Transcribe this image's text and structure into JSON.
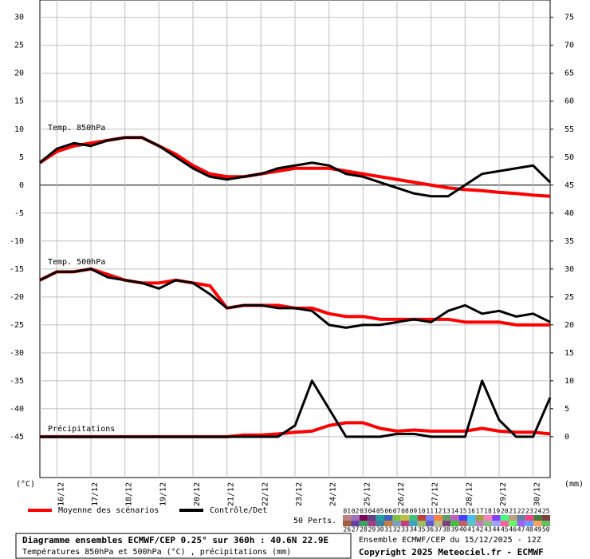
{
  "chart_data": {
    "type": "line",
    "title": "Diagramme ensembles ECMWF/CEP 0.25° sur 360h : 40.6N 22.9E",
    "subtitle": "Températures 850hPa et 500hPa (°C) , précipitations (mm)",
    "run_info": "Ensemble ECMWF/CEP du 15/12/2025 - 12Z",
    "copyright": "Copyright 2025 Meteociel.fr - ECMWF",
    "ylabel": "(°C)",
    "y2label": "(mm)",
    "annotations": [
      "Temp. 850hPa",
      "Temp. 500hPa",
      "Précipitations"
    ],
    "grid": true,
    "x": [
      0,
      12,
      24,
      36,
      48,
      60,
      72,
      84,
      96,
      108,
      120,
      132,
      144,
      156,
      168,
      180,
      192,
      204,
      216,
      228,
      240,
      252,
      264,
      276,
      288,
      300,
      312,
      324,
      336,
      348,
      360
    ],
    "xlim": [
      0,
      360
    ],
    "xticks": [
      {
        "value": 12,
        "label": "16/12"
      },
      {
        "value": 36,
        "label": "17/12"
      },
      {
        "value": 60,
        "label": "18/12"
      },
      {
        "value": 84,
        "label": "19/12"
      },
      {
        "value": 108,
        "label": "20/12"
      },
      {
        "value": 132,
        "label": "21/12"
      },
      {
        "value": 156,
        "label": "22/12"
      },
      {
        "value": 180,
        "label": "23/12"
      },
      {
        "value": 204,
        "label": "24/12"
      },
      {
        "value": 228,
        "label": "25/12"
      },
      {
        "value": 252,
        "label": "26/12"
      },
      {
        "value": 276,
        "label": "27/12"
      },
      {
        "value": 300,
        "label": "28/12"
      },
      {
        "value": 324,
        "label": "29/12"
      },
      {
        "value": 348,
        "label": "30/12"
      }
    ],
    "ylim": [
      -52.3,
      33.1
    ],
    "yticks": [
      30,
      25,
      20,
      15,
      10,
      5,
      0,
      -5,
      -10,
      -15,
      -20,
      -25,
      -30,
      -35,
      -40,
      -45
    ],
    "y2lim": [
      -7.3,
      78.1
    ],
    "y2ticks": [
      75,
      70,
      65,
      60,
      55,
      50,
      45,
      40,
      35,
      30,
      25,
      20,
      15,
      10,
      5,
      0
    ],
    "series": [
      {
        "name": "Moyenne des scénarios",
        "color": "#ff0000",
        "t850": [
          4,
          6,
          7,
          7.5,
          8,
          8.5,
          8.5,
          7,
          5.5,
          3.5,
          2,
          1.5,
          1.5,
          2,
          2.5,
          3,
          3,
          3,
          2.5,
          2,
          1.5,
          1,
          0.5,
          0,
          -0.5,
          -0.8,
          -1,
          -1.3,
          -1.5,
          -1.8,
          -2
        ],
        "t500": [
          -17,
          -15.5,
          -15.5,
          -15,
          -16,
          -17,
          -17.5,
          -17.5,
          -17,
          -17.5,
          -18,
          -22,
          -21.5,
          -21.5,
          -21.5,
          -22,
          -22,
          -23,
          -23.5,
          -23.5,
          -24,
          -24,
          -24,
          -24,
          -24,
          -24.5,
          -24.5,
          -24.5,
          -25,
          -25,
          -25
        ],
        "precip": [
          0,
          0,
          0,
          0,
          0,
          0,
          0,
          0,
          0,
          0,
          0,
          0,
          0.3,
          0.3,
          0.5,
          0.8,
          1,
          2,
          2.5,
          2.5,
          1.5,
          1,
          1.2,
          1,
          1,
          1,
          1.5,
          1,
          0.8,
          0.8,
          0.5
        ]
      },
      {
        "name": "Contrôle/Det",
        "color": "#000000",
        "t850": [
          4,
          6.5,
          7.5,
          7,
          8,
          8.5,
          8.5,
          7,
          5,
          3,
          1.5,
          1,
          1.5,
          2,
          3,
          3.5,
          4,
          3.5,
          2,
          1.5,
          0.5,
          -0.5,
          -1.5,
          -2,
          -2,
          0,
          2,
          2.5,
          3,
          3.5,
          0.5
        ],
        "t500": [
          -17,
          -15.5,
          -15.5,
          -15,
          -16.5,
          -17,
          -17.5,
          -18.5,
          -17,
          -17.5,
          -19.5,
          -22,
          -21.5,
          -21.5,
          -22,
          -22,
          -22.5,
          -25,
          -25.5,
          -25,
          -25,
          -24.5,
          -24,
          -24.5,
          -22.5,
          -21.5,
          -23,
          -22.5,
          -23.5,
          -23,
          -24.5
        ],
        "precip": [
          0,
          0,
          0,
          0,
          0,
          0,
          0,
          0,
          0,
          0,
          0,
          0,
          0,
          0,
          0,
          2,
          10,
          5,
          0,
          0,
          0,
          0.5,
          0.5,
          0,
          0,
          0,
          10,
          3,
          0,
          0,
          7
        ]
      }
    ],
    "perturbations_label": "50 Perts.",
    "perturbation_labels": [
      "01",
      "02",
      "03",
      "04",
      "05",
      "06",
      "07",
      "08",
      "09",
      "10",
      "11",
      "12",
      "13",
      "14",
      "15",
      "16",
      "17",
      "18",
      "19",
      "20",
      "21",
      "22",
      "23",
      "24",
      "25",
      "26",
      "27",
      "28",
      "29",
      "30",
      "31",
      "32",
      "33",
      "34",
      "35",
      "36",
      "37",
      "38",
      "39",
      "40",
      "41",
      "42",
      "43",
      "44",
      "45",
      "46",
      "47",
      "48",
      "49",
      "50"
    ],
    "perturbation_colors": [
      "#c08080",
      "#a070c0",
      "#800060",
      "#604080",
      "#20a0a0",
      "#4060c0",
      "#80c040",
      "#c0c040",
      "#40c080",
      "#c04040",
      "#8080ff",
      "#ff8040",
      "#60a060",
      "#c060c0",
      "#4040ff",
      "#40c0ff",
      "#a0a040",
      "#ff80c0",
      "#8040ff",
      "#40ff80",
      "#c0a080",
      "#6080a0",
      "#ff4080",
      "#408040",
      "#804040",
      "#a06040",
      "#6040a0",
      "#40a060",
      "#a04080",
      "#4080a0",
      "#c08040",
      "#80a0c0",
      "#c04080",
      "#40a0c0",
      "#a0c060",
      "#6060c0",
      "#c0c080",
      "#804080",
      "#40c040",
      "#c06060",
      "#60c0c0",
      "#c080c0",
      "#80c080",
      "#a0a0ff",
      "#ff60a0",
      "#60ff60",
      "#a060ff",
      "#60a0ff",
      "#ffa060",
      "#60c060"
    ]
  }
}
